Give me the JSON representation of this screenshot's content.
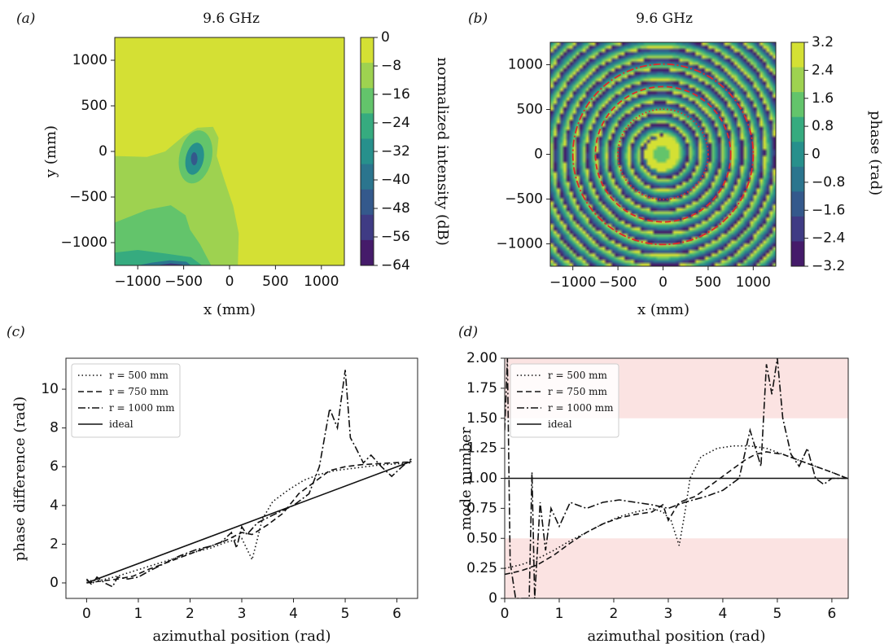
{
  "figure": {
    "panel_a": {
      "letter": "(a)",
      "title": "9.6 GHz",
      "xlabel": "x (mm)",
      "ylabel": "y (mm)",
      "colorbar_label": "normalized intensity (dB)"
    },
    "panel_b": {
      "letter": "(b)",
      "title": "9.6 GHz",
      "xlabel": "x (mm)",
      "ylabel": "",
      "colorbar_label": "phase (rad)"
    },
    "panel_c": {
      "letter": "(c)",
      "xlabel": "azimuthal position (rad)",
      "ylabel": "phase difference (rad)"
    },
    "panel_d": {
      "letter": "(d)",
      "xlabel": "azimuthal position (rad)",
      "ylabel": "mode number"
    }
  },
  "chart_data": [
    {
      "id": "a",
      "type": "heatmap",
      "title": "9.6 GHz",
      "xlabel": "x (mm)",
      "ylabel": "y (mm)",
      "xlim": [
        -1250,
        1250
      ],
      "ylim": [
        -1250,
        1250
      ],
      "xticks": [
        -1000,
        -500,
        0,
        500,
        1000
      ],
      "xtick_labels": [
        "−1000",
        "−500",
        "0",
        "500",
        "1000"
      ],
      "yticks": [
        1000,
        500,
        0,
        -500,
        -1000
      ],
      "ytick_labels": [
        "1000",
        "500",
        "0",
        "−500",
        "−1000"
      ],
      "colorbar": {
        "label": "normalized intensity (dB)",
        "levels": [
          0,
          -8,
          -16,
          -24,
          -32,
          -40,
          -48,
          -56,
          -64
        ],
        "level_labels": [
          "0",
          "−8",
          "−16",
          "−24",
          "−32",
          "−40",
          "−48",
          "−56",
          "−64"
        ],
        "colors": [
          "#d4e034",
          "#9ed250",
          "#63c46b",
          "#36ab7f",
          "#27908c",
          "#2b758e",
          "#34598c",
          "#3f3b84",
          "#451b6a"
        ]
      },
      "colormap": "viridis"
    },
    {
      "id": "b",
      "type": "heatmap",
      "title": "9.6 GHz",
      "xlabel": "x (mm)",
      "xlim": [
        -1250,
        1250
      ],
      "ylim": [
        -1250,
        1250
      ],
      "xticks": [
        -1000,
        -500,
        0,
        500,
        1000
      ],
      "xtick_labels": [
        "−1000",
        "−500",
        "0",
        "500",
        "1000"
      ],
      "yticks": [
        1000,
        500,
        0,
        -500,
        -1000
      ],
      "ytick_labels": [
        "1000",
        "500",
        "0",
        "−500",
        "−1000"
      ],
      "colorbar": {
        "label": "phase (rad)",
        "levels": [
          3.2,
          2.4,
          1.6,
          0.8,
          0,
          -0.8,
          -1.6,
          -2.4,
          -3.2
        ],
        "level_labels": [
          "3.2",
          "2.4",
          "1.6",
          "0.8",
          "0",
          "−0.8",
          "−1.6",
          "−2.4",
          "−3.2"
        ],
        "colors": [
          "#d4e034",
          "#9ed250",
          "#63c46b",
          "#36ab7f",
          "#27908c",
          "#2b758e",
          "#34598c",
          "#3f3b84",
          "#451b6a"
        ]
      },
      "colormap": "viridis",
      "overlay_circles_mm": [
        500,
        750,
        1000
      ],
      "overlay_color": "#e0282a"
    },
    {
      "id": "c",
      "type": "line",
      "xlabel": "azimuthal position (rad)",
      "ylabel": "phase difference (rad)",
      "xlim": [
        -0.4,
        6.4
      ],
      "ylim": [
        -0.8,
        11.6
      ],
      "xticks": [
        0,
        1,
        2,
        3,
        4,
        5,
        6
      ],
      "yticks": [
        0,
        2,
        4,
        6,
        8,
        10
      ],
      "legend": "top-left",
      "grid": false,
      "series": [
        {
          "name": "r = 500 mm",
          "style": "dotted",
          "x": [
            0,
            0.3,
            0.6,
            0.9,
            1.2,
            1.5,
            1.8,
            2.1,
            2.4,
            2.7,
            3.0,
            3.2,
            3.4,
            3.6,
            3.9,
            4.2,
            4.5,
            4.8,
            5.1,
            5.4,
            5.7,
            6.0,
            6.28
          ],
          "y": [
            0.1,
            0.15,
            0.35,
            0.6,
            0.85,
            1.1,
            1.35,
            1.6,
            1.8,
            2.1,
            2.3,
            1.2,
            3.3,
            4.2,
            4.8,
            5.3,
            5.6,
            5.8,
            5.9,
            6.0,
            6.1,
            6.15,
            6.2
          ]
        },
        {
          "name": "r = 750 mm",
          "style": "dashed",
          "x": [
            0,
            0.3,
            0.6,
            0.9,
            1.2,
            1.5,
            1.8,
            2.1,
            2.4,
            2.7,
            3.0,
            3.2,
            3.5,
            3.8,
            4.1,
            4.4,
            4.7,
            5.0,
            5.3,
            5.6,
            5.9,
            6.28
          ],
          "y": [
            0.0,
            0.1,
            0.2,
            0.35,
            0.7,
            1.0,
            1.3,
            1.6,
            1.9,
            2.2,
            2.6,
            2.5,
            3.0,
            3.6,
            4.6,
            5.2,
            5.8,
            6.0,
            6.1,
            6.15,
            6.2,
            6.25
          ]
        },
        {
          "name": "r = 1000 mm",
          "style": "dashdot",
          "x": [
            0,
            0.1,
            0.2,
            0.35,
            0.5,
            0.6,
            0.8,
            1.0,
            1.2,
            1.5,
            1.8,
            2.1,
            2.4,
            2.6,
            2.8,
            2.9,
            3.0,
            3.1,
            3.3,
            3.6,
            4.0,
            4.3,
            4.5,
            4.7,
            4.85,
            5.0,
            5.1,
            5.2,
            5.35,
            5.5,
            5.7,
            5.9,
            6.1,
            6.28
          ],
          "y": [
            0.2,
            -0.1,
            0.3,
            0.0,
            -0.2,
            0.3,
            0.2,
            0.3,
            0.6,
            1.0,
            1.4,
            1.7,
            1.9,
            2.1,
            2.6,
            1.8,
            2.9,
            2.5,
            3.1,
            3.5,
            4.0,
            4.6,
            6.0,
            9.0,
            8.0,
            11.0,
            7.5,
            7.0,
            6.2,
            6.6,
            6.0,
            5.5,
            6.0,
            6.4
          ]
        },
        {
          "name": "ideal",
          "style": "solid",
          "x": [
            0,
            6.28
          ],
          "y": [
            0,
            6.28
          ]
        }
      ]
    },
    {
      "id": "d",
      "type": "line",
      "xlabel": "azimuthal position (rad)",
      "ylabel": "mode number",
      "xlim": [
        0,
        6.3
      ],
      "ylim": [
        0,
        2.0
      ],
      "xticks": [
        0,
        1,
        2,
        3,
        4,
        5,
        6
      ],
      "yticks": [
        0,
        0.25,
        0.5,
        0.75,
        1.0,
        1.25,
        1.5,
        1.75,
        2.0
      ],
      "ytick_labels": [
        "0",
        "0.25",
        "0.50",
        "0.75",
        "1.00",
        "1.25",
        "1.50",
        "1.75",
        "2.00"
      ],
      "legend": "top-left",
      "grid": false,
      "shaded_bands": [
        {
          "y0": 0,
          "y1": 0.5,
          "color": "#fbe3e2"
        },
        {
          "y0": 1.5,
          "y1": 2.0,
          "color": "#fbe3e2"
        }
      ],
      "series": [
        {
          "name": "r = 500 mm",
          "style": "dotted",
          "x": [
            0,
            0.3,
            0.6,
            0.9,
            1.2,
            1.5,
            1.8,
            2.1,
            2.4,
            2.7,
            2.9,
            3.05,
            3.2,
            3.3,
            3.4,
            3.6,
            3.9,
            4.2,
            4.5,
            4.8,
            5.1,
            5.4,
            5.7,
            6.0,
            6.28
          ],
          "y": [
            0.25,
            0.28,
            0.33,
            0.4,
            0.48,
            0.55,
            0.62,
            0.68,
            0.72,
            0.75,
            0.72,
            0.65,
            0.44,
            0.7,
            1.0,
            1.18,
            1.25,
            1.27,
            1.27,
            1.25,
            1.2,
            1.15,
            1.1,
            1.05,
            1.0
          ]
        },
        {
          "name": "r = 750 mm",
          "style": "dashed",
          "x": [
            0,
            0.3,
            0.6,
            0.9,
            1.2,
            1.5,
            1.8,
            2.1,
            2.4,
            2.7,
            2.9,
            3.0,
            3.2,
            3.5,
            3.8,
            4.1,
            4.4,
            4.6,
            4.8,
            5.1,
            5.4,
            5.7,
            6.0,
            6.28
          ],
          "y": [
            0.2,
            0.23,
            0.28,
            0.36,
            0.46,
            0.55,
            0.62,
            0.67,
            0.7,
            0.72,
            0.78,
            0.65,
            0.8,
            0.85,
            0.95,
            1.05,
            1.15,
            1.2,
            1.22,
            1.2,
            1.15,
            1.1,
            1.05,
            1.0
          ]
        },
        {
          "name": "r = 1000 mm",
          "style": "dashdot",
          "x": [
            0,
            0.05,
            0.1,
            0.2,
            0.3,
            0.45,
            0.5,
            0.55,
            0.65,
            0.75,
            0.85,
            1.0,
            1.2,
            1.5,
            1.8,
            2.1,
            2.4,
            2.7,
            3.0,
            3.3,
            3.7,
            4.0,
            4.3,
            4.5,
            4.7,
            4.8,
            4.9,
            5.0,
            5.1,
            5.25,
            5.4,
            5.55,
            5.7,
            5.85,
            6.0,
            6.28
          ],
          "y": [
            1.4,
            2.0,
            0.3,
            0.0,
            0.0,
            0.0,
            1.05,
            0.0,
            0.8,
            0.4,
            0.75,
            0.6,
            0.8,
            0.75,
            0.8,
            0.82,
            0.8,
            0.78,
            0.75,
            0.8,
            0.85,
            0.9,
            1.0,
            1.4,
            1.1,
            1.95,
            1.7,
            2.0,
            1.5,
            1.2,
            1.1,
            1.25,
            1.0,
            0.95,
            1.0,
            1.0
          ]
        },
        {
          "name": "ideal",
          "style": "solid",
          "x": [
            0,
            6.3
          ],
          "y": [
            1.0,
            1.0
          ]
        }
      ]
    }
  ]
}
